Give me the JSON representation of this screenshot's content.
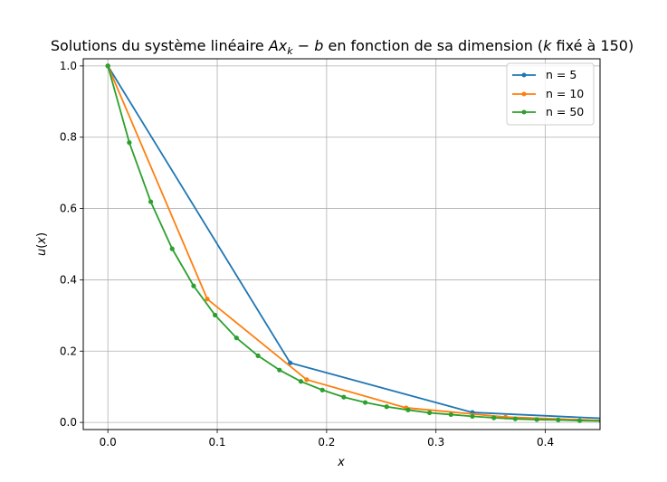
{
  "chart_data": {
    "type": "line",
    "title": {
      "pre": "Solutions du système linéaire ",
      "math_A": "Ax",
      "math_sub": "k",
      "math_op": " − ",
      "math_b": "b",
      "mid": " en fonction de sa dimension (",
      "k_var": "k",
      "post": " fixé à 150)"
    },
    "xlabel": "x",
    "ylabel": {
      "u": "u",
      "x": "x"
    },
    "xlim": [
      -0.0225,
      0.45
    ],
    "ylim": [
      -0.02,
      1.02
    ],
    "xticks": [
      0.0,
      0.1,
      0.2,
      0.3,
      0.4
    ],
    "xtick_labels": [
      "0.0",
      "0.1",
      "0.2",
      "0.3",
      "0.4"
    ],
    "yticks": [
      0.0,
      0.2,
      0.4,
      0.6,
      0.8,
      1.0
    ],
    "ytick_labels": [
      "0.0",
      "0.2",
      "0.4",
      "0.6",
      "0.8",
      "1.0"
    ],
    "grid": true,
    "legend_position": "top-right",
    "series": [
      {
        "name": "n = 5",
        "color": "#1f77b4",
        "x": [
          0.0,
          0.1667,
          0.3333,
          0.5
        ],
        "y": [
          1.0,
          0.167,
          0.028,
          0.0046
        ]
      },
      {
        "name": "n = 10",
        "color": "#ff7f0e",
        "x": [
          0.0,
          0.0909,
          0.1818,
          0.2727,
          0.3636,
          0.4545
        ],
        "y": [
          1.0,
          0.346,
          0.12,
          0.041,
          0.015,
          0.005
        ]
      },
      {
        "name": "n = 50",
        "color": "#2ca02c",
        "x": [
          0.0,
          0.0196,
          0.0392,
          0.0588,
          0.0784,
          0.098,
          0.1176,
          0.1373,
          0.1569,
          0.1765,
          0.1961,
          0.2157,
          0.2353,
          0.2549,
          0.2745,
          0.2941,
          0.3137,
          0.3333,
          0.3529,
          0.3725,
          0.3922,
          0.4118,
          0.4314,
          0.451
        ],
        "y": [
          1.0,
          0.785,
          0.619,
          0.487,
          0.383,
          0.301,
          0.237,
          0.187,
          0.147,
          0.115,
          0.091,
          0.071,
          0.056,
          0.044,
          0.035,
          0.027,
          0.022,
          0.017,
          0.013,
          0.01,
          0.008,
          0.007,
          0.005,
          0.004
        ]
      }
    ]
  }
}
